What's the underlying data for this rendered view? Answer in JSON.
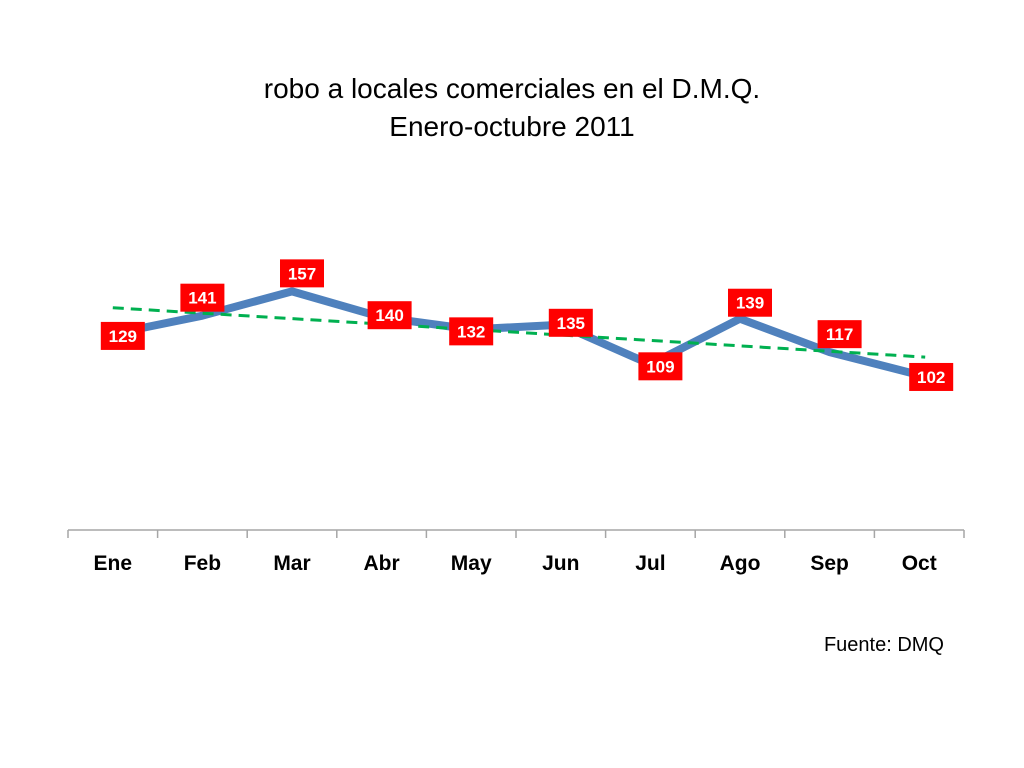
{
  "chart_data": {
    "type": "line",
    "title": "robo a locales comerciales en el D.M.Q.",
    "subtitle": "Enero-octubre 2011",
    "categories": [
      "Ene",
      "Feb",
      "Mar",
      "Abr",
      "May",
      "Jun",
      "Jul",
      "Ago",
      "Sep",
      "Oct"
    ],
    "series": [
      {
        "values": [
          129,
          141,
          157,
          140,
          132,
          135,
          109,
          139,
          117,
          102
        ],
        "color": "#4F81BD"
      }
    ],
    "trendline": {
      "type": "linear",
      "style": "dashed",
      "color": "#00B050"
    },
    "data_label_style": {
      "background": "#FF0000",
      "color": "#FFFFFF"
    },
    "ylim": [
      0,
      250
    ],
    "grid": false,
    "legend": "none"
  },
  "source_note": "Fuente: DMQ"
}
